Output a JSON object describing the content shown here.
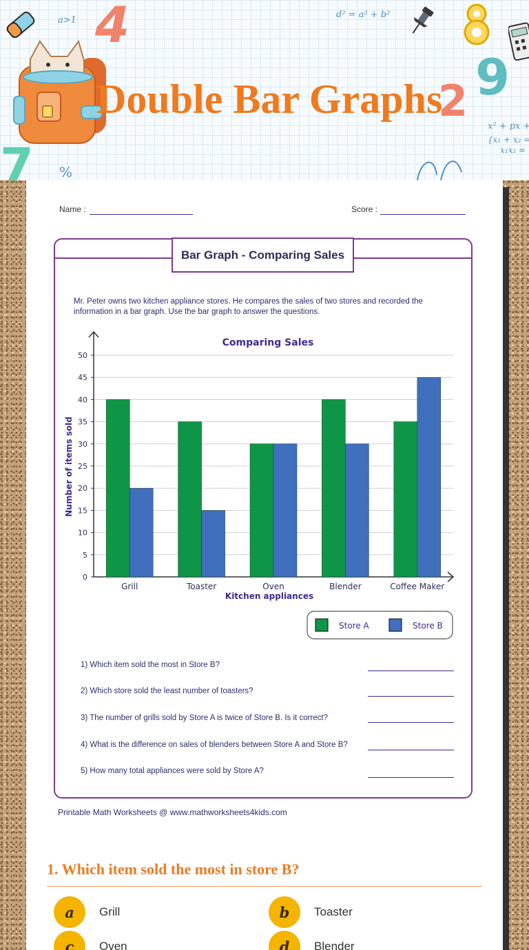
{
  "header": {
    "title": "Double Bar Graphs",
    "decorations": {
      "formula_top": "a>1",
      "formula_square": "d² = a² + b²",
      "formula_quad": "x² + px +",
      "formula_system_1": "{x₁ + x₂ =",
      "formula_system_2": "x₁x₂ =",
      "percent_sign": "%",
      "digit_four": "4",
      "digit_nine": "9",
      "digit_two": "2",
      "digit_seven": "7"
    }
  },
  "worksheet": {
    "name_label": "Name :",
    "score_label": "Score :",
    "heading": "Bar Graph - Comparing Sales",
    "intro": "Mr. Peter owns two kitchen appliance stores. He compares the sales of two stores and recorded the information in a bar graph. Use the bar graph to answer the questions.",
    "questions": [
      "1) Which item sold the most in Store B?",
      "2) Which store sold the least number of toasters?",
      "3) The number of grills sold by Store A is twice of Store B. Is it correct?",
      "4) What is the difference on sales of blenders between Store A and Store B?",
      "5) How many total appliances were sold by Store A?"
    ],
    "footer": "Printable Math Worksheets @ www.mathworksheets4kids.com"
  },
  "chart_data": {
    "type": "bar",
    "title": "Comparing Sales",
    "xlabel": "Kitchen appliances",
    "ylabel": "Number of items sold",
    "categories": [
      "Grill",
      "Toaster",
      "Oven",
      "Blender",
      "Coffee Maker"
    ],
    "series": [
      {
        "name": "Store A",
        "color": "#0f9546",
        "values": [
          40,
          35,
          30,
          40,
          35
        ]
      },
      {
        "name": "Store B",
        "color": "#3f6fbd",
        "values": [
          20,
          15,
          30,
          30,
          45
        ]
      }
    ],
    "ylim": [
      0,
      50
    ],
    "yticks": [
      0,
      5,
      10,
      15,
      20,
      25,
      30,
      35,
      40,
      45,
      50
    ],
    "grid": true,
    "legend_position": "bottom-right"
  },
  "quiz": {
    "question": "1. Which item sold the most in store B?",
    "options": [
      {
        "letter": "a",
        "label": "Grill"
      },
      {
        "letter": "b",
        "label": "Toaster"
      },
      {
        "letter": "c",
        "label": "Oven"
      },
      {
        "letter": "d",
        "label": "Blender"
      }
    ]
  },
  "colors": {
    "title_orange": "#f07a1e",
    "frame_purple": "#7d3a8f",
    "badge_yellow": "#f5b400"
  }
}
